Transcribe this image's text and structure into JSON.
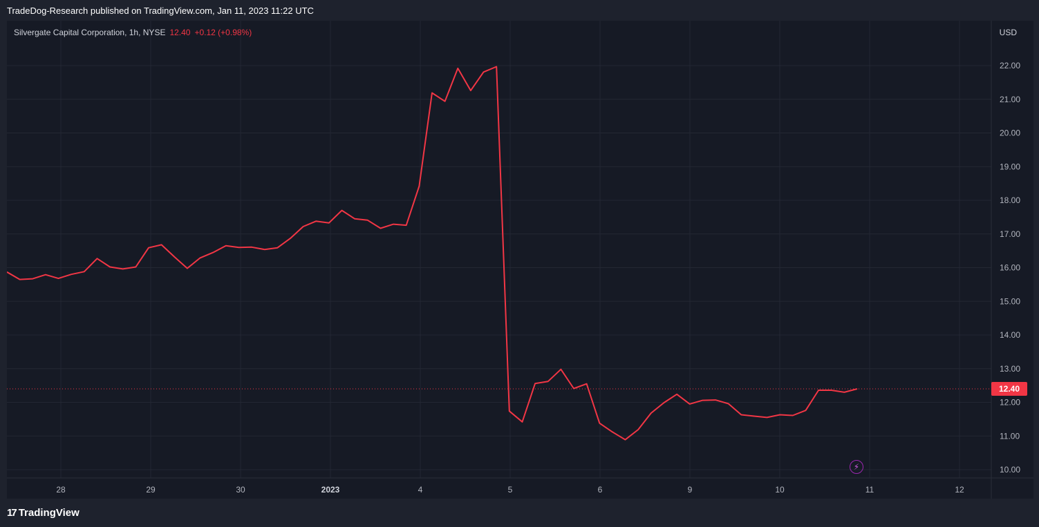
{
  "header": {
    "published_text": "TradeDog-Research published on TradingView.com, Jan 11, 2023 11:22 UTC"
  },
  "legend": {
    "symbol_text": "Silvergate Capital Corporation, 1h, NYSE",
    "last_price": "12.40",
    "change": "+0.12 (+0.98%)"
  },
  "currency": "USD",
  "last_price_label": "12.40",
  "footer": {
    "brand": "TradingView"
  },
  "event_icon": "lightning-icon",
  "colors": {
    "line": "#f23645",
    "background": "#161a25",
    "grid": "#232733",
    "text": "#b2b5be"
  },
  "chart_data": {
    "type": "line",
    "x_tick_labels": [
      "28",
      "29",
      "30",
      "2023",
      "4",
      "5",
      "6",
      "9",
      "10",
      "11",
      "12"
    ],
    "y_tick_labels": [
      "10.00",
      "11.00",
      "12.00",
      "13.00",
      "14.00",
      "15.00",
      "16.00",
      "17.00",
      "18.00",
      "19.00",
      "20.00",
      "21.00",
      "22.00"
    ],
    "ylim": [
      9.8,
      23.0
    ],
    "grid": true,
    "last_value_line": 12.4,
    "series": [
      {
        "values": [
          15.87,
          15.65,
          15.67,
          15.79,
          15.68,
          15.8,
          15.88,
          16.27,
          16.02,
          15.96,
          16.02,
          16.59,
          16.68,
          16.32,
          15.98,
          16.29,
          16.45,
          16.65,
          16.6,
          16.61,
          16.54,
          16.59,
          16.87,
          17.22,
          17.38,
          17.33,
          17.7,
          17.45,
          17.41,
          17.17,
          17.29,
          17.26,
          18.42,
          21.19,
          20.94,
          21.92,
          21.26,
          21.81,
          21.97,
          11.74,
          11.42,
          12.56,
          12.62,
          12.98,
          12.41,
          12.55,
          11.38,
          11.12,
          10.89,
          11.19,
          11.68,
          11.99,
          12.24,
          11.95,
          12.06,
          12.07,
          11.96,
          11.63,
          11.59,
          11.55,
          11.63,
          11.61,
          11.76,
          12.36,
          12.36,
          12.3,
          12.4
        ]
      }
    ]
  }
}
